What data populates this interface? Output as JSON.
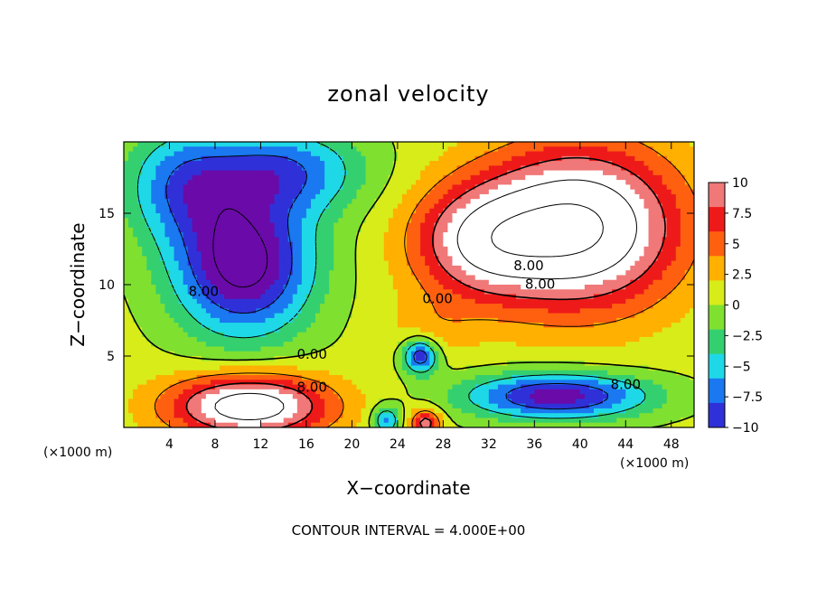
{
  "chart_data": {
    "type": "contour",
    "title": "zonal velocity",
    "xlabel": "X−coordinate",
    "ylabel": "Z−coordinate",
    "x_unit_left": "(×1000 m)",
    "x_unit_right": "(×1000 m)",
    "xlim": [
      0,
      50
    ],
    "ylim": [
      0,
      20
    ],
    "x_ticks": [
      4,
      8,
      12,
      16,
      20,
      24,
      28,
      32,
      36,
      40,
      44,
      48
    ],
    "x_tick_labels": [
      "4",
      "8",
      "12",
      "16",
      "20",
      "24",
      "28",
      "32",
      "36",
      "40",
      "44",
      "48"
    ],
    "y_ticks": [
      5,
      10,
      15
    ],
    "y_tick_labels": [
      "5",
      "10",
      "15"
    ],
    "colorbar": {
      "range": [
        -10,
        10
      ],
      "ticks": [
        10,
        7.5,
        5,
        2.5,
        0,
        -2.5,
        -5,
        -7.5,
        -10
      ],
      "tick_labels": [
        "10",
        "7.5",
        "5",
        "2.5",
        "0",
        "−2.5",
        "−5",
        "−7.5",
        "−10"
      ],
      "colors": [
        "#6a0aa8",
        "#3030d8",
        "#1a78f0",
        "#1ed8e8",
        "#34d070",
        "#7fe030",
        "#d8ec1a",
        "#ffb000",
        "#ff6010",
        "#ee1a1a",
        "#f07878",
        "#ffffff"
      ]
    },
    "contour_interval_text": "CONTOUR INTERVAL = 4.000E+00",
    "contour_labels": [
      {
        "text": "8.00",
        "x": 7,
        "z": 9.2
      },
      {
        "text": "0.00",
        "x": 16.5,
        "z": 4.8
      },
      {
        "text": "8.00",
        "x": 16.5,
        "z": 2.5
      },
      {
        "text": "0.00",
        "x": 27.5,
        "z": 8.7
      },
      {
        "text": "8.00",
        "x": 35.5,
        "z": 11
      },
      {
        "text": "8.00",
        "x": 36.5,
        "z": 9.7
      },
      {
        "text": "8.00",
        "x": 44,
        "z": 2.7
      }
    ],
    "features": [
      {
        "sign": "negative",
        "x": 10.5,
        "z": 11.5,
        "rx": 6,
        "rz": 5,
        "peak": -14
      },
      {
        "sign": "negative",
        "x": 5,
        "z": 17,
        "rx": 5,
        "rz": 4,
        "peak": -7
      },
      {
        "sign": "negative",
        "x": 14,
        "z": 18,
        "rx": 7,
        "rz": 3,
        "peak": -8
      },
      {
        "sign": "negative",
        "x": 26,
        "z": 5,
        "rx": 1.5,
        "rz": 1.2,
        "peak": -11
      },
      {
        "sign": "negative",
        "x": 38,
        "z": 2.2,
        "rx": 8,
        "rz": 1.6,
        "peak": -12
      },
      {
        "sign": "negative",
        "x": 23,
        "z": 0.5,
        "rx": 1.2,
        "rz": 1,
        "peak": -8
      },
      {
        "sign": "positive",
        "x": 40,
        "z": 14,
        "rx": 8.5,
        "rz": 5.5,
        "peak": 16
      },
      {
        "sign": "positive",
        "x": 31,
        "z": 13,
        "rx": 6,
        "rz": 4,
        "peak": 9
      },
      {
        "sign": "positive",
        "x": 11,
        "z": 1.5,
        "rx": 7,
        "rz": 2.2,
        "peak": 14
      },
      {
        "sign": "positive",
        "x": 26.5,
        "z": 0.3,
        "rx": 1.3,
        "rz": 1,
        "peak": 9
      },
      {
        "sign": "positive",
        "x": 27,
        "z": 7,
        "rx": 4,
        "rz": 2,
        "peak": 2
      }
    ]
  }
}
